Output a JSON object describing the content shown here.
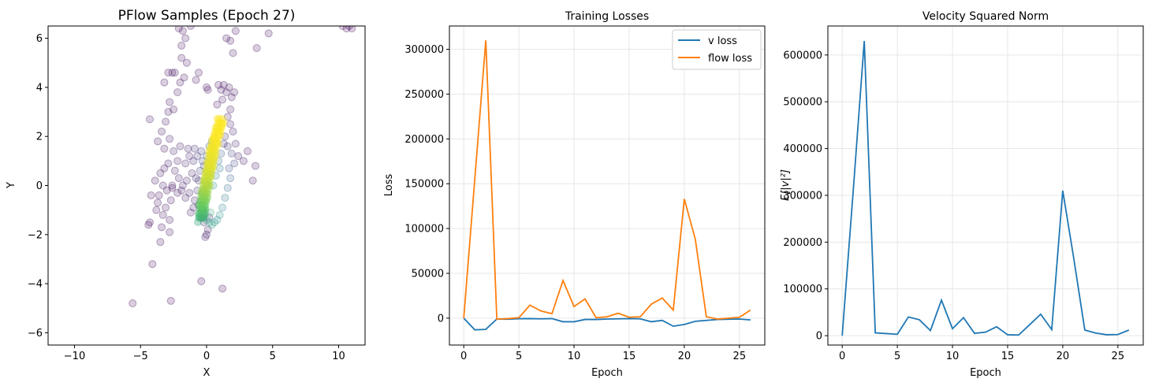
{
  "chart_data": [
    {
      "type": "scatter",
      "title": "PFlow Samples (Epoch 27)",
      "xlabel": "X",
      "ylabel": "Y",
      "xlim": [
        -12,
        12
      ],
      "ylim": [
        -6.5,
        6.5
      ],
      "xticks": [
        -10,
        -5,
        0,
        5,
        10
      ],
      "yticks": [
        -6,
        -4,
        -2,
        0,
        2,
        4,
        6
      ],
      "colormap": "viridis",
      "alpha": 0.2,
      "grid": false,
      "curve_band": {
        "x": [
          -0.4,
          -0.3,
          -0.1,
          0.1,
          0.3,
          0.5,
          0.8,
          1.1
        ],
        "y": [
          -1.4,
          -0.8,
          -0.2,
          0.4,
          0.9,
          1.5,
          2.1,
          2.7
        ],
        "color_value": [
          0.6,
          0.75,
          0.85,
          0.92,
          0.96,
          0.98,
          1.0,
          1.0
        ]
      },
      "points": [
        [
          -5.6,
          -4.8,
          0.02
        ],
        [
          -2.7,
          -4.7,
          0.02
        ],
        [
          -0.4,
          -3.9,
          0.02
        ],
        [
          1.2,
          -4.2,
          0.02
        ],
        [
          -4.1,
          -3.2,
          0.02
        ],
        [
          -3.5,
          -2.3,
          0.03
        ],
        [
          -4.4,
          -1.6,
          0.03
        ],
        [
          -4.3,
          -1.5,
          0.03
        ],
        [
          -3.4,
          -1.7,
          0.04
        ],
        [
          -2.8,
          -1.9,
          0.05
        ],
        [
          -3.3,
          -1.2,
          0.04
        ],
        [
          -2.8,
          -1.4,
          0.05
        ],
        [
          -3.1,
          -0.9,
          0.05
        ],
        [
          -3.8,
          -1.0,
          0.04
        ],
        [
          -2.7,
          -0.6,
          0.05
        ],
        [
          -4.2,
          -0.4,
          0.04
        ],
        [
          -3.6,
          -0.4,
          0.04
        ],
        [
          -3.0,
          -0.2,
          0.05
        ],
        [
          -2.6,
          -0.1,
          0.06
        ],
        [
          -2.2,
          -0.3,
          0.06
        ],
        [
          -1.6,
          -0.5,
          0.07
        ],
        [
          -1.3,
          -0.3,
          0.08
        ],
        [
          -0.9,
          -0.6,
          0.09
        ],
        [
          -0.6,
          -0.8,
          0.1
        ],
        [
          -0.3,
          -1.0,
          0.12
        ],
        [
          -0.1,
          -2.1,
          0.08
        ],
        [
          0.1,
          -1.8,
          0.09
        ],
        [
          0.0,
          -2.0,
          0.08
        ],
        [
          -0.2,
          -1.5,
          0.12
        ],
        [
          0.2,
          -1.3,
          0.14
        ],
        [
          -3.9,
          0.2,
          0.05
        ],
        [
          -3.5,
          0.5,
          0.05
        ],
        [
          -3.2,
          0.7,
          0.06
        ],
        [
          -2.9,
          0.9,
          0.06
        ],
        [
          -2.4,
          0.6,
          0.07
        ],
        [
          -2.1,
          0.3,
          0.07
        ],
        [
          -1.8,
          0.0,
          0.08
        ],
        [
          -1.5,
          0.2,
          0.09
        ],
        [
          -1.1,
          0.5,
          0.1
        ],
        [
          -0.8,
          0.3,
          0.12
        ],
        [
          -2.6,
          0.0,
          0.06
        ],
        [
          -3.3,
          0.0,
          0.06
        ],
        [
          -1.9,
          -0.2,
          0.07
        ],
        [
          -3.7,
          -0.7,
          0.05
        ],
        [
          -2.2,
          1.0,
          0.07
        ],
        [
          -1.6,
          0.9,
          0.09
        ],
        [
          -1.3,
          1.2,
          0.1
        ],
        [
          -1.0,
          1.0,
          0.11
        ],
        [
          -0.7,
          1.2,
          0.14
        ],
        [
          -0.4,
          1.4,
          0.16
        ],
        [
          -0.9,
          1.5,
          0.12
        ],
        [
          -1.4,
          1.5,
          0.1
        ],
        [
          -2.0,
          1.6,
          0.08
        ],
        [
          -2.5,
          1.4,
          0.07
        ],
        [
          -2.8,
          1.9,
          0.06
        ],
        [
          -3.2,
          1.5,
          0.05
        ],
        [
          -3.4,
          2.2,
          0.05
        ],
        [
          -3.7,
          1.8,
          0.05
        ],
        [
          -4.3,
          2.7,
          0.04
        ],
        [
          -3.1,
          2.6,
          0.05
        ],
        [
          -2.9,
          3.0,
          0.05
        ],
        [
          -2.8,
          3.4,
          0.05
        ],
        [
          -2.5,
          3.1,
          0.05
        ],
        [
          -2.2,
          3.8,
          0.05
        ],
        [
          -2.0,
          4.2,
          0.04
        ],
        [
          -3.2,
          4.2,
          0.04
        ],
        [
          -2.6,
          4.6,
          0.04
        ],
        [
          -2.4,
          4.6,
          0.04
        ],
        [
          -2.9,
          4.6,
          0.04
        ],
        [
          -1.7,
          4.4,
          0.04
        ],
        [
          -1.9,
          5.2,
          0.04
        ],
        [
          -1.5,
          5.0,
          0.04
        ],
        [
          -1.9,
          5.7,
          0.04
        ],
        [
          -1.6,
          6.0,
          0.04
        ],
        [
          -2.1,
          6.4,
          0.03
        ],
        [
          -1.8,
          6.3,
          0.03
        ],
        [
          -1.2,
          6.5,
          0.03
        ],
        [
          -0.6,
          4.6,
          0.04
        ],
        [
          -0.8,
          4.3,
          0.04
        ],
        [
          0.0,
          4.0,
          0.04
        ],
        [
          0.1,
          3.9,
          0.04
        ],
        [
          0.9,
          4.1,
          0.05
        ],
        [
          1.1,
          3.9,
          0.05
        ],
        [
          1.3,
          4.1,
          0.05
        ],
        [
          1.5,
          3.8,
          0.05
        ],
        [
          1.7,
          4.0,
          0.05
        ],
        [
          1.9,
          3.6,
          0.05
        ],
        [
          2.1,
          3.8,
          0.05
        ],
        [
          1.2,
          3.5,
          0.05
        ],
        [
          0.8,
          3.3,
          0.05
        ],
        [
          1.8,
          3.1,
          0.06
        ],
        [
          1.6,
          2.8,
          0.07
        ],
        [
          1.8,
          2.5,
          0.08
        ],
        [
          2.0,
          2.2,
          0.09
        ],
        [
          1.4,
          2.0,
          0.12
        ],
        [
          1.6,
          1.6,
          0.15
        ],
        [
          1.9,
          1.3,
          0.17
        ],
        [
          2.2,
          1.7,
          0.1
        ],
        [
          1.3,
          1.7,
          0.14
        ],
        [
          2.1,
          0.9,
          0.2
        ],
        [
          1.7,
          0.7,
          0.25
        ],
        [
          1.8,
          0.3,
          0.3
        ],
        [
          1.6,
          -0.1,
          0.35
        ],
        [
          1.4,
          -0.5,
          0.4
        ],
        [
          1.2,
          -0.9,
          0.45
        ],
        [
          1.0,
          -1.2,
          0.48
        ],
        [
          0.8,
          -1.4,
          0.5
        ],
        [
          0.6,
          -1.5,
          0.52
        ],
        [
          0.4,
          -1.6,
          0.55
        ],
        [
          0.2,
          -1.5,
          0.57
        ],
        [
          2.4,
          1.2,
          0.08
        ],
        [
          2.8,
          1.0,
          0.06
        ],
        [
          3.1,
          1.4,
          0.05
        ],
        [
          3.7,
          0.8,
          0.04
        ],
        [
          3.5,
          0.2,
          0.04
        ],
        [
          3.8,
          5.6,
          0.03
        ],
        [
          4.7,
          6.2,
          0.03
        ],
        [
          1.8,
          5.9,
          0.04
        ],
        [
          2.0,
          5.4,
          0.04
        ],
        [
          2.2,
          6.3,
          0.03
        ],
        [
          1.5,
          6.0,
          0.04
        ],
        [
          10.3,
          6.5,
          0.02
        ],
        [
          10.6,
          6.4,
          0.02
        ],
        [
          11.0,
          6.4,
          0.02
        ],
        [
          10.8,
          6.5,
          0.02
        ],
        [
          -0.2,
          0.8,
          0.2
        ],
        [
          -0.3,
          1.0,
          0.22
        ],
        [
          0.0,
          1.2,
          0.26
        ],
        [
          0.2,
          1.6,
          0.3
        ],
        [
          0.4,
          1.8,
          0.32
        ],
        [
          -0.5,
          0.6,
          0.18
        ],
        [
          -0.6,
          0.2,
          0.15
        ],
        [
          -0.7,
          -0.2,
          0.13
        ],
        [
          -1.0,
          -0.9,
          0.1
        ],
        [
          -1.2,
          -1.1,
          0.09
        ],
        [
          -0.3,
          -0.3,
          0.4
        ],
        [
          -0.4,
          -0.6,
          0.45
        ],
        [
          -0.2,
          -1.2,
          0.52
        ],
        [
          0.0,
          -1.4,
          0.55
        ],
        [
          0.3,
          -1.1,
          0.6
        ],
        [
          0.5,
          0.0,
          0.48
        ],
        [
          0.7,
          0.4,
          0.42
        ],
        [
          0.9,
          1.0,
          0.36
        ],
        [
          1.1,
          1.3,
          0.3
        ],
        [
          1.0,
          0.7,
          0.4
        ]
      ]
    },
    {
      "type": "line",
      "title": "Training Losses",
      "xlabel": "Epoch",
      "ylabel": "Loss",
      "xlim": [
        -1.3,
        27.3
      ],
      "ylim": [
        -30000,
        326000
      ],
      "xticks": [
        0,
        5,
        10,
        15,
        20,
        25
      ],
      "yticks": [
        0,
        50000,
        100000,
        150000,
        200000,
        250000,
        300000
      ],
      "grid": true,
      "legend_position": "top-right",
      "x": [
        0,
        1,
        2,
        3,
        4,
        5,
        6,
        7,
        8,
        9,
        10,
        11,
        12,
        13,
        14,
        15,
        16,
        17,
        18,
        19,
        20,
        21,
        22,
        23,
        24,
        25,
        26
      ],
      "series": [
        {
          "name": "v loss",
          "color": "#1f77b4",
          "values": [
            0,
            -13000,
            -12500,
            -1000,
            -1200,
            -600,
            -500,
            -800,
            -500,
            -4000,
            -4000,
            -1500,
            -1500,
            -1000,
            -800,
            -500,
            -800,
            -4000,
            -2500,
            -9000,
            -7000,
            -3500,
            -2500,
            -1500,
            -1200,
            -1000,
            -2000
          ]
        },
        {
          "name": "flow loss",
          "color": "#ff7f0e",
          "values": [
            0,
            155000,
            310000,
            -1000,
            -500,
            500,
            14500,
            8000,
            5000,
            42000,
            13000,
            21500,
            500,
            1500,
            5500,
            1000,
            1500,
            15500,
            22500,
            9000,
            133000,
            88000,
            1500,
            -1000,
            0,
            1000,
            9000
          ]
        }
      ]
    },
    {
      "type": "line",
      "title": "Velocity Squared Norm",
      "xlabel": "Epoch",
      "ylabel": "E[|v|²]",
      "xlim": [
        -1.3,
        27.3
      ],
      "ylim": [
        -20000,
        662000
      ],
      "xticks": [
        0,
        5,
        10,
        15,
        20,
        25
      ],
      "yticks": [
        0,
        100000,
        200000,
        300000,
        400000,
        500000,
        600000
      ],
      "grid": true,
      "x": [
        0,
        1,
        2,
        3,
        4,
        5,
        6,
        7,
        8,
        9,
        10,
        11,
        12,
        13,
        14,
        15,
        16,
        17,
        18,
        19,
        20,
        21,
        22,
        23,
        24,
        25,
        26
      ],
      "series": [
        {
          "color": "#1f77b4",
          "values": [
            0,
            310000,
            630000,
            6000,
            4500,
            3000,
            40000,
            34000,
            11000,
            76000,
            15000,
            38500,
            5000,
            7500,
            19000,
            2000,
            1500,
            23500,
            46000,
            13000,
            310000,
            165000,
            12000,
            5500,
            2000,
            2500,
            12000
          ]
        }
      ]
    }
  ]
}
